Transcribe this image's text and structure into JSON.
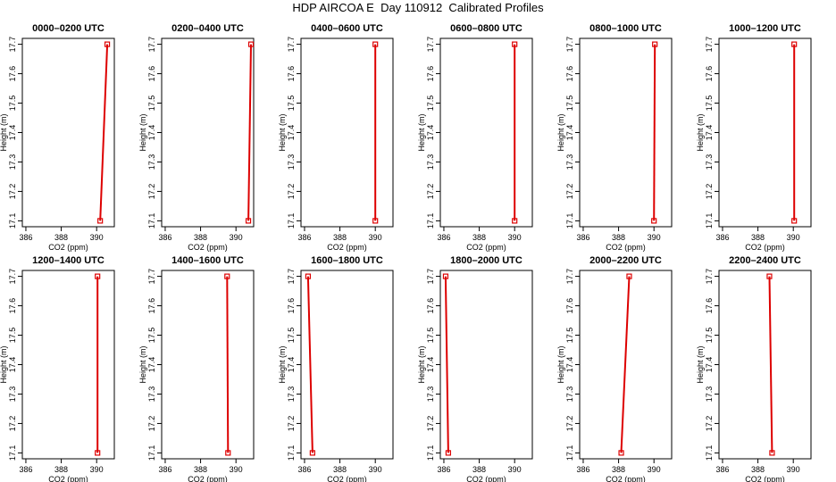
{
  "figure": {
    "title": "HDP AIRCOA E  Day 110912  Calibrated Profiles",
    "line_color": "#dd0000"
  },
  "chart_data": [
    {
      "type": "line",
      "title": "0000–0200 UTC",
      "xlabel": "CO2 (ppm)",
      "ylabel": "Height (m)",
      "xlim": [
        385.8,
        391
      ],
      "ylim": [
        17.08,
        17.72
      ],
      "xticks": [
        "386",
        "388",
        "390"
      ],
      "yticks": [
        "17.1",
        "17.2",
        "17.3",
        "17.4",
        "17.5",
        "17.6",
        "17.7"
      ],
      "series": [
        {
          "x": [
            390.2,
            390.6
          ],
          "y": [
            17.1,
            17.7
          ]
        }
      ]
    },
    {
      "type": "line",
      "title": "0200–0400 UTC",
      "xlabel": "CO2 (ppm)",
      "ylabel": "Height (m)",
      "xlim": [
        385.8,
        391
      ],
      "ylim": [
        17.08,
        17.72
      ],
      "xticks": [
        "386",
        "388",
        "390"
      ],
      "yticks": [
        "17.1",
        "17.2",
        "17.3",
        "17.4",
        "17.5",
        "17.6",
        "17.7"
      ],
      "series": [
        {
          "x": [
            390.7,
            390.85
          ],
          "y": [
            17.1,
            17.7
          ]
        }
      ]
    },
    {
      "type": "line",
      "title": "0400–0600 UTC",
      "xlabel": "CO2 (ppm)",
      "ylabel": "Height (m)",
      "xlim": [
        385.8,
        391
      ],
      "ylim": [
        17.08,
        17.72
      ],
      "xticks": [
        "386",
        "388",
        "390"
      ],
      "yticks": [
        "17.1",
        "17.2",
        "17.3",
        "17.4",
        "17.5",
        "17.6",
        "17.7"
      ],
      "series": [
        {
          "x": [
            390.0,
            390.0
          ],
          "y": [
            17.1,
            17.7
          ]
        }
      ]
    },
    {
      "type": "line",
      "title": "0600–0800 UTC",
      "xlabel": "CO2 (ppm)",
      "ylabel": "Height (m)",
      "xlim": [
        385.8,
        391
      ],
      "ylim": [
        17.08,
        17.72
      ],
      "xticks": [
        "386",
        "388",
        "390"
      ],
      "yticks": [
        "17.1",
        "17.2",
        "17.3",
        "17.4",
        "17.5",
        "17.6",
        "17.7"
      ],
      "series": [
        {
          "x": [
            390.0,
            390.0
          ],
          "y": [
            17.1,
            17.7
          ]
        }
      ]
    },
    {
      "type": "line",
      "title": "0800–1000 UTC",
      "xlabel": "CO2 (ppm)",
      "ylabel": "Height (m)",
      "xlim": [
        385.8,
        391
      ],
      "ylim": [
        17.08,
        17.72
      ],
      "xticks": [
        "386",
        "388",
        "390"
      ],
      "yticks": [
        "17.1",
        "17.2",
        "17.3",
        "17.4",
        "17.5",
        "17.6",
        "17.7"
      ],
      "series": [
        {
          "x": [
            390.0,
            390.05
          ],
          "y": [
            17.1,
            17.7
          ]
        }
      ]
    },
    {
      "type": "line",
      "title": "1000–1200 UTC",
      "xlabel": "CO2 (ppm)",
      "ylabel": "Height (m)",
      "xlim": [
        385.8,
        391
      ],
      "ylim": [
        17.08,
        17.72
      ],
      "xticks": [
        "386",
        "388",
        "390"
      ],
      "yticks": [
        "17.1",
        "17.2",
        "17.3",
        "17.4",
        "17.5",
        "17.6",
        "17.7"
      ],
      "series": [
        {
          "x": [
            390.05,
            390.05
          ],
          "y": [
            17.1,
            17.7
          ]
        }
      ]
    },
    {
      "type": "line",
      "title": "1200–1400 UTC",
      "xlabel": "CO2 (ppm)",
      "ylabel": "Height (m)",
      "xlim": [
        385.8,
        391
      ],
      "ylim": [
        17.08,
        17.72
      ],
      "xticks": [
        "386",
        "388",
        "390"
      ],
      "yticks": [
        "17.1",
        "17.2",
        "17.3",
        "17.4",
        "17.5",
        "17.6",
        "17.7"
      ],
      "series": [
        {
          "x": [
            390.05,
            390.05
          ],
          "y": [
            17.1,
            17.7
          ]
        }
      ]
    },
    {
      "type": "line",
      "title": "1400–1600 UTC",
      "xlabel": "CO2 (ppm)",
      "ylabel": "Height (m)",
      "xlim": [
        385.8,
        391
      ],
      "ylim": [
        17.08,
        17.72
      ],
      "xticks": [
        "386",
        "388",
        "390"
      ],
      "yticks": [
        "17.1",
        "17.2",
        "17.3",
        "17.4",
        "17.5",
        "17.6",
        "17.7"
      ],
      "series": [
        {
          "x": [
            389.55,
            389.5
          ],
          "y": [
            17.1,
            17.7
          ]
        }
      ]
    },
    {
      "type": "line",
      "title": "1600–1800 UTC",
      "xlabel": "CO2 (ppm)",
      "ylabel": "Height (m)",
      "xlim": [
        385.8,
        391
      ],
      "ylim": [
        17.08,
        17.72
      ],
      "xticks": [
        "386",
        "388",
        "390"
      ],
      "yticks": [
        "17.1",
        "17.2",
        "17.3",
        "17.4",
        "17.5",
        "17.6",
        "17.7"
      ],
      "series": [
        {
          "x": [
            386.45,
            386.2
          ],
          "y": [
            17.1,
            17.7
          ]
        }
      ]
    },
    {
      "type": "line",
      "title": "1800–2000 UTC",
      "xlabel": "CO2 (ppm)",
      "ylabel": "Height (m)",
      "xlim": [
        385.8,
        391
      ],
      "ylim": [
        17.08,
        17.72
      ],
      "xticks": [
        "386",
        "388",
        "390"
      ],
      "yticks": [
        "17.1",
        "17.2",
        "17.3",
        "17.4",
        "17.5",
        "17.6",
        "17.7"
      ],
      "series": [
        {
          "x": [
            386.25,
            386.1
          ],
          "y": [
            17.1,
            17.7
          ]
        }
      ]
    },
    {
      "type": "line",
      "title": "2000–2200 UTC",
      "xlabel": "CO2 (ppm)",
      "ylabel": "Height (m)",
      "xlim": [
        385.8,
        391
      ],
      "ylim": [
        17.08,
        17.72
      ],
      "xticks": [
        "386",
        "388",
        "390"
      ],
      "yticks": [
        "17.1",
        "17.2",
        "17.3",
        "17.4",
        "17.5",
        "17.6",
        "17.7"
      ],
      "series": [
        {
          "x": [
            388.15,
            388.6
          ],
          "y": [
            17.1,
            17.7
          ]
        }
      ]
    },
    {
      "type": "line",
      "title": "2200–2400 UTC",
      "xlabel": "CO2 (ppm)",
      "ylabel": "Height (m)",
      "xlim": [
        385.8,
        391
      ],
      "ylim": [
        17.08,
        17.72
      ],
      "xticks": [
        "386",
        "388",
        "390"
      ],
      "yticks": [
        "17.1",
        "17.2",
        "17.3",
        "17.4",
        "17.5",
        "17.6",
        "17.7"
      ],
      "series": [
        {
          "x": [
            388.8,
            388.65
          ],
          "y": [
            17.1,
            17.7
          ]
        }
      ]
    }
  ]
}
